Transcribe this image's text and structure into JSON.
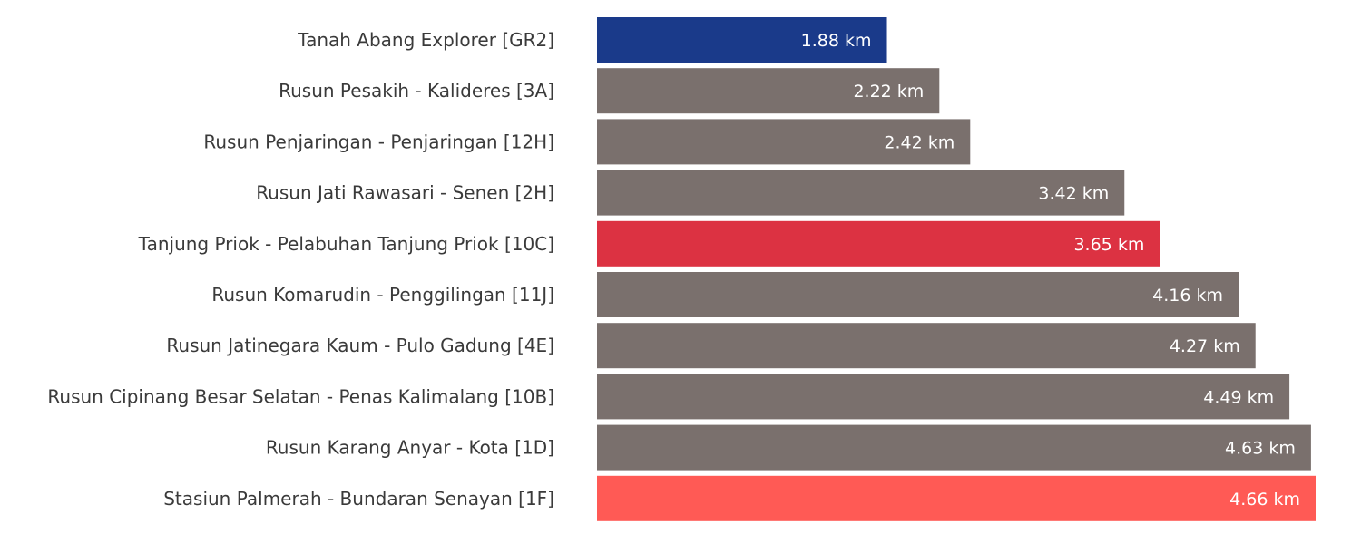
{
  "chart_data": {
    "type": "bar",
    "orientation": "horizontal",
    "title": "",
    "xlabel": "",
    "ylabel": "",
    "grid": false,
    "legend": "none",
    "unit": "km",
    "xlim": [
      0,
      4.66
    ],
    "categories": [
      "Tanah Abang Explorer [GR2]",
      "Rusun Pesakih - Kalideres [3A]",
      "Rusun Penjaringan - Penjaringan [12H]",
      "Rusun Jati Rawasari - Senen [2H]",
      "Tanjung Priok - Pelabuhan Tanjung Priok [10C]",
      "Rusun Komarudin - Penggilingan [11J]",
      "Rusun Jatinegara Kaum - Pulo Gadung [4E]",
      "Rusun Cipinang Besar Selatan - Penas Kalimalang [10B]",
      "Rusun Karang Anyar - Kota [1D]",
      "Stasiun Palmerah - Bundaran Senayan [1F]"
    ],
    "values": [
      1.88,
      2.22,
      2.42,
      3.42,
      3.65,
      4.16,
      4.27,
      4.49,
      4.63,
      4.66
    ],
    "value_labels": [
      "1.88 km",
      "2.22 km",
      "2.42 km",
      "3.42 km",
      "3.65 km",
      "4.16 km",
      "4.27 km",
      "4.49 km",
      "4.63 km",
      "4.66 km"
    ],
    "colors": [
      "#1a3a8a",
      "#7a706d",
      "#7a706d",
      "#7a706d",
      "#dc3242",
      "#7a706d",
      "#7a706d",
      "#7a706d",
      "#7a706d",
      "#ff5a55"
    ]
  }
}
